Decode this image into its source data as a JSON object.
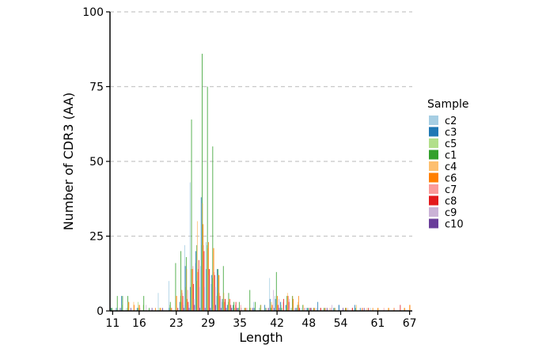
{
  "chart_data": {
    "type": "bar",
    "xlabel": "Length",
    "ylabel": "Number of CDR3 (AA)",
    "ylim": [
      0,
      100
    ],
    "xlim": [
      10.5,
      67.5
    ],
    "y_ticks": [
      0,
      25,
      50,
      75,
      100
    ],
    "x_ticks": [
      11,
      16,
      23,
      29,
      35,
      42,
      48,
      54,
      61,
      67
    ],
    "grid": "horizontal dashed",
    "legend_title": "Sample",
    "legend_position": "right",
    "series": [
      {
        "name": "c2",
        "color": "#a6cee3",
        "x": [
          11,
          13,
          14,
          16,
          20,
          22,
          24,
          25,
          26,
          27,
          28,
          29,
          30,
          31,
          32,
          33,
          34,
          35,
          38,
          39,
          41,
          42,
          43,
          44,
          45,
          47,
          48,
          50,
          54,
          57,
          60
        ],
        "values": [
          1,
          1,
          1,
          1,
          6,
          10,
          3,
          22,
          43,
          16,
          15,
          23,
          9,
          5,
          3,
          2,
          1,
          1,
          3,
          1,
          11,
          5,
          3,
          2,
          1,
          1,
          1,
          1,
          2,
          1,
          1
        ]
      },
      {
        "name": "c3",
        "color": "#1f78b4",
        "x": [
          11,
          12,
          13,
          16,
          22,
          24,
          25,
          26,
          27,
          28,
          29,
          30,
          31,
          32,
          33,
          34,
          35,
          38,
          40,
          41,
          42,
          43,
          44,
          46,
          48,
          50,
          53,
          54,
          57,
          58
        ],
        "values": [
          1,
          1,
          5,
          1,
          1,
          3,
          15,
          8,
          20,
          38,
          14,
          12,
          14,
          4,
          2,
          2,
          1,
          1,
          2,
          4,
          4,
          3,
          2,
          1,
          1,
          3,
          1,
          2,
          2,
          1
        ]
      },
      {
        "name": "c5",
        "color": "#b2df8a",
        "x": [
          11,
          13,
          14,
          16,
          17,
          20,
          22,
          24,
          25,
          26,
          27,
          28,
          29,
          30,
          31,
          32,
          33,
          34,
          35,
          37,
          39,
          41,
          43,
          44,
          45
        ],
        "values": [
          1,
          2,
          1,
          3,
          2,
          1,
          2,
          5,
          8,
          14,
          10,
          22,
          22,
          11,
          6,
          4,
          3,
          2,
          1,
          1,
          1,
          3,
          2,
          1,
          1
        ]
      },
      {
        "name": "c1",
        "color": "#33a02c",
        "x": [
          11,
          12,
          13,
          14,
          16,
          17,
          18,
          22,
          23,
          24,
          25,
          26,
          27,
          28,
          29,
          30,
          31,
          32,
          33,
          34,
          35,
          36,
          37,
          38,
          39,
          40,
          41,
          42,
          43,
          44,
          45,
          46,
          47,
          48,
          49,
          51,
          53,
          55,
          57
        ],
        "values": [
          1,
          5,
          5,
          5,
          1,
          5,
          1,
          3,
          16,
          20,
          18,
          64,
          22,
          86,
          75,
          55,
          14,
          15,
          6,
          3,
          3,
          1,
          7,
          3,
          2,
          1,
          1,
          13,
          1,
          5,
          5,
          2,
          2,
          1,
          1,
          1,
          1,
          1,
          1
        ]
      },
      {
        "name": "c4",
        "color": "#fdbf6f",
        "x": [
          14,
          15,
          16,
          20,
          22,
          23,
          24,
          25,
          26,
          27,
          28,
          29,
          30,
          31,
          32,
          33,
          35,
          36,
          39,
          41,
          42,
          44,
          45,
          46,
          47,
          49,
          52,
          53,
          55,
          57,
          59,
          61,
          63,
          64,
          66,
          67
        ],
        "values": [
          3,
          3,
          2,
          1,
          1,
          5,
          3,
          14,
          14,
          30,
          36,
          21,
          21,
          12,
          6,
          4,
          1,
          1,
          2,
          3,
          2,
          6,
          5,
          3,
          2,
          1,
          1,
          1,
          1,
          2,
          1,
          1,
          1,
          1,
          1,
          2
        ]
      },
      {
        "name": "c6",
        "color": "#ff7f00",
        "x": [
          14,
          15,
          16,
          19,
          20,
          22,
          23,
          24,
          25,
          26,
          27,
          28,
          29,
          30,
          31,
          32,
          33,
          34,
          36,
          37,
          41,
          42,
          44,
          45,
          46,
          49,
          51,
          55,
          58,
          60,
          61,
          63,
          66,
          67
        ],
        "values": [
          3,
          2,
          2,
          1,
          1,
          1,
          5,
          7,
          4,
          14,
          13,
          29,
          23,
          21,
          12,
          3,
          4,
          1,
          1,
          1,
          2,
          5,
          5,
          4,
          5,
          1,
          1,
          1,
          1,
          1,
          1,
          1,
          1,
          2
        ]
      },
      {
        "name": "c7",
        "color": "#fb9a99",
        "x": [
          16,
          22,
          24,
          25,
          26,
          27,
          28,
          29,
          30,
          31,
          32,
          33,
          34,
          35,
          36,
          40,
          41,
          43,
          44,
          46,
          47,
          48,
          50,
          51,
          52,
          56,
          58,
          62,
          64
        ],
        "values": [
          1,
          1,
          6,
          7,
          15,
          14,
          22,
          14,
          13,
          6,
          4,
          4,
          2,
          2,
          1,
          1,
          2,
          3,
          5,
          2,
          1,
          1,
          1,
          1,
          1,
          1,
          1,
          1,
          1
        ]
      },
      {
        "name": "c8",
        "color": "#e31a1c",
        "x": [
          23,
          24,
          25,
          26,
          27,
          28,
          29,
          30,
          31,
          32,
          33,
          34,
          42,
          43,
          44,
          46,
          48,
          50,
          56,
          59,
          65
        ],
        "values": [
          1,
          5,
          3,
          9,
          17,
          20,
          14,
          12,
          5,
          4,
          2,
          3,
          2,
          4,
          3,
          1,
          1,
          1,
          1,
          1,
          2
        ]
      },
      {
        "name": "c9",
        "color": "#cab2d6",
        "x": [
          17,
          23,
          24,
          25,
          26,
          27,
          28,
          29,
          30,
          31,
          32,
          33,
          35,
          36,
          41,
          42,
          44,
          47,
          49,
          52,
          55
        ],
        "values": [
          2,
          1,
          2,
          2,
          4,
          8,
          8,
          12,
          8,
          4,
          3,
          2,
          1,
          1,
          7,
          4,
          4,
          1,
          1,
          2,
          1
        ]
      },
      {
        "name": "c10",
        "color": "#6a3d9a",
        "x": [
          12,
          14,
          18,
          20,
          24,
          25,
          26,
          27,
          28,
          29,
          30,
          31,
          32,
          33,
          34,
          37,
          40,
          41,
          42,
          45,
          48,
          51,
          54,
          58
        ],
        "values": [
          1,
          1,
          1,
          1,
          1,
          1,
          2,
          1,
          1,
          1,
          2,
          1,
          1,
          1,
          1,
          1,
          1,
          1,
          1,
          1,
          1,
          1,
          1,
          1
        ]
      }
    ]
  }
}
